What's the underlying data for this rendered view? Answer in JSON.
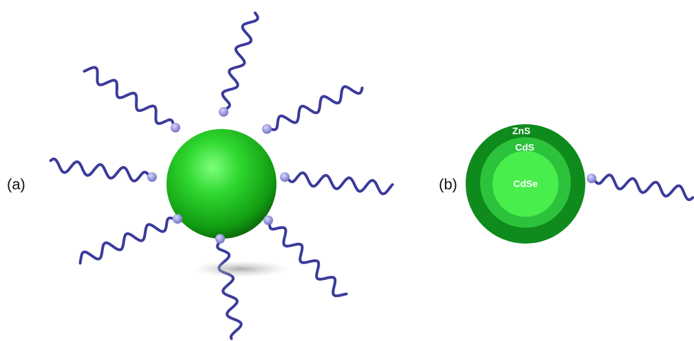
{
  "panels": [
    {
      "label": "(a)"
    },
    {
      "label": "(b)",
      "layers": [
        "ZnS",
        "CdS",
        "CdSe"
      ]
    }
  ]
}
